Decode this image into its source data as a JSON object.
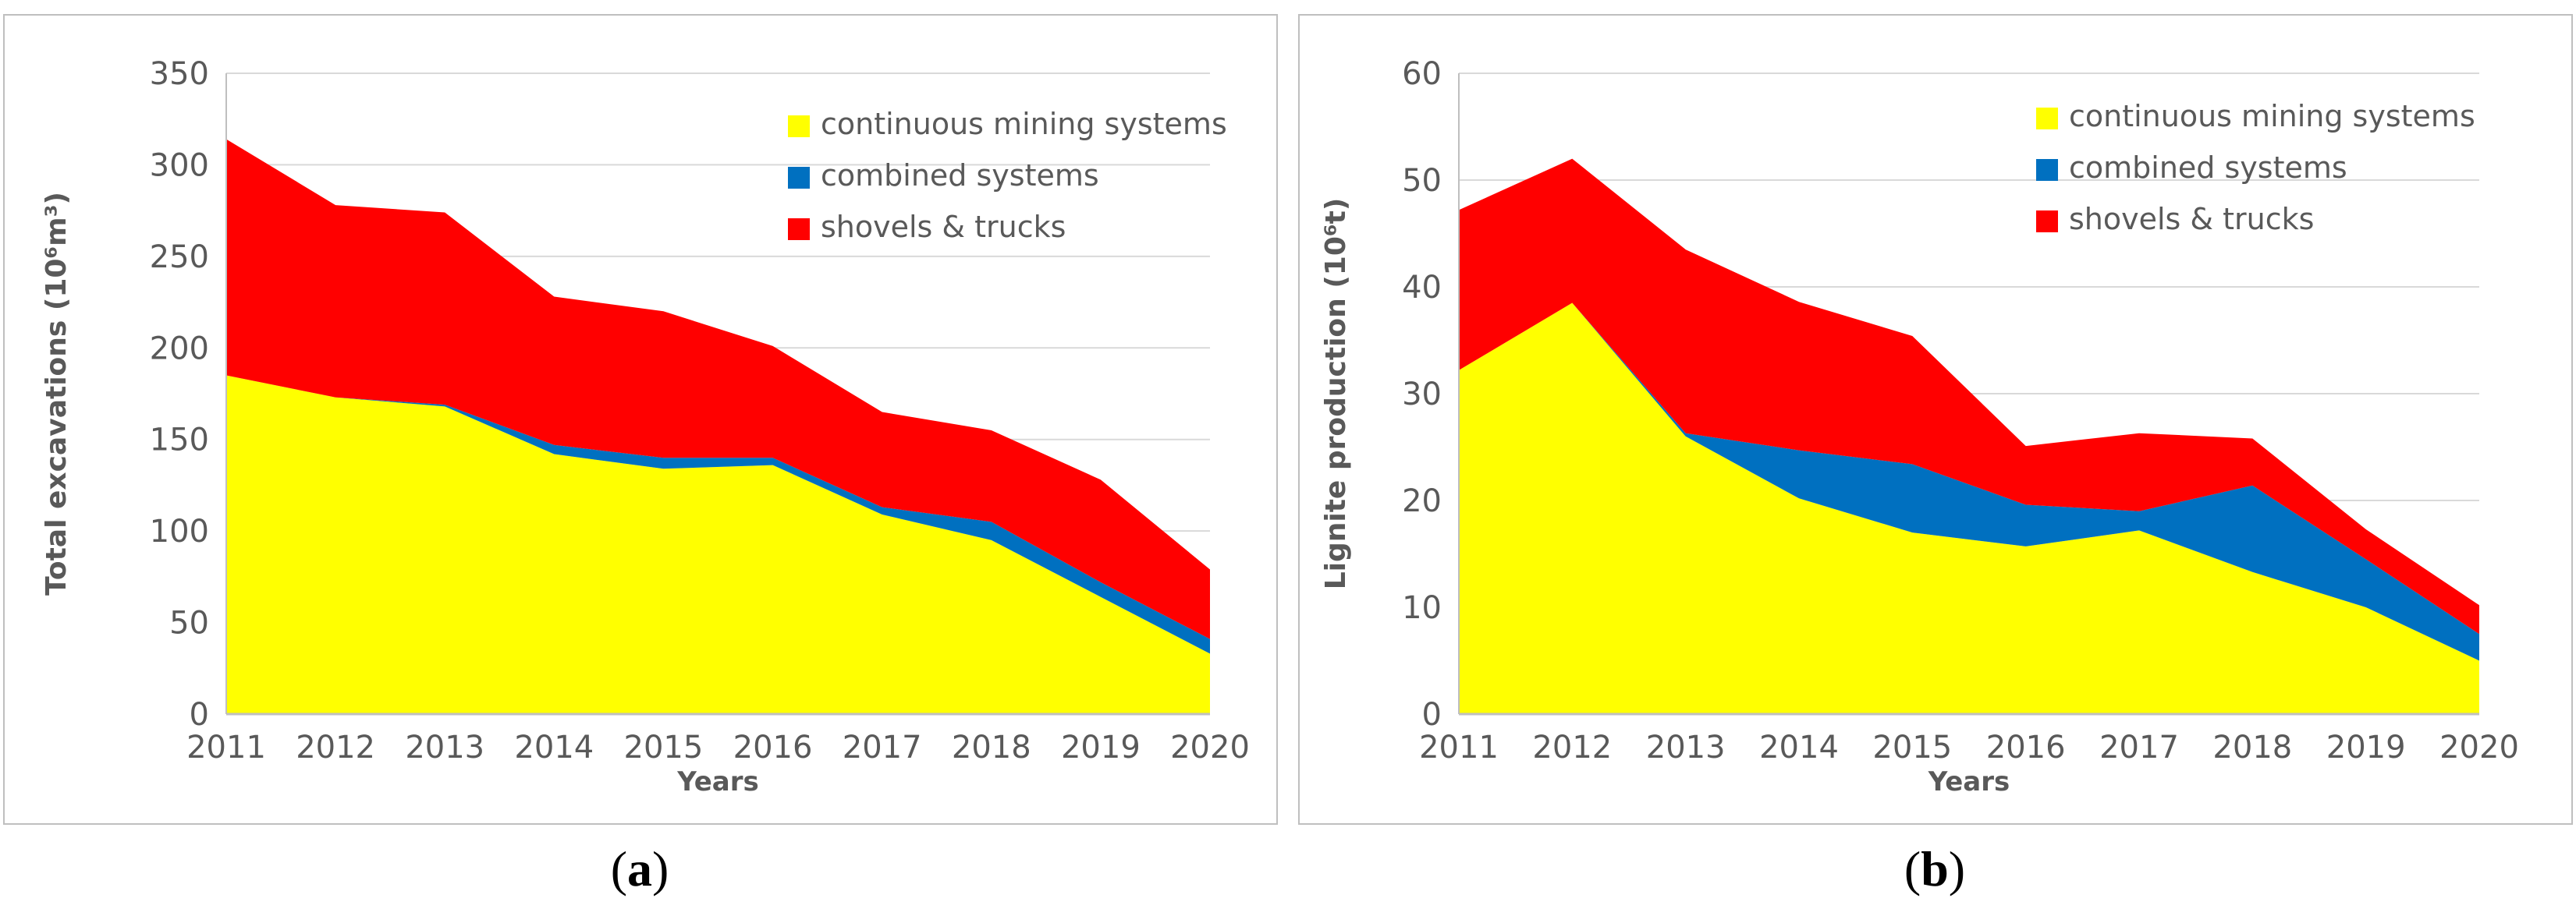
{
  "colors": {
    "continuous": "#FFFF00",
    "combined": "#0070C0",
    "shovels": "#FF0000",
    "grid": "#D9D9D9",
    "axis": "#BFBFBF"
  },
  "chart_data": [
    {
      "type": "area",
      "stacked": true,
      "title": "",
      "xlabel": "Years",
      "ylabel": "Total excavations (10⁶m³)",
      "ylim": [
        0,
        350
      ],
      "yticks": [
        "0",
        "50",
        "100",
        "150",
        "200",
        "250",
        "300",
        "350"
      ],
      "categories": [
        "2011",
        "2012",
        "2013",
        "2014",
        "2015",
        "2016",
        "2017",
        "2018",
        "2019",
        "2020"
      ],
      "legend_position": "top-right",
      "series": [
        {
          "name": "continuous mining systems",
          "color_key": "continuous",
          "values": [
            185,
            173,
            168,
            142,
            134,
            136,
            109,
            95,
            64,
            33
          ]
        },
        {
          "name": "combined systems",
          "color_key": "combined",
          "values": [
            0,
            0,
            1,
            5,
            6,
            4,
            4,
            10,
            8,
            8
          ]
        },
        {
          "name": "shovels & trucks",
          "color_key": "shovels",
          "values": [
            129,
            105,
            105,
            81,
            80,
            61,
            52,
            50,
            56,
            38
          ]
        }
      ]
    },
    {
      "type": "area",
      "stacked": true,
      "title": "",
      "xlabel": "Years",
      "ylabel": "Lignite production (10⁶t)",
      "ylim": [
        0,
        60
      ],
      "yticks": [
        "0",
        "10",
        "20",
        "30",
        "40",
        "50",
        "60"
      ],
      "categories": [
        "2011",
        "2012",
        "2013",
        "2014",
        "2015",
        "2016",
        "2017",
        "2018",
        "2019",
        "2020"
      ],
      "legend_position": "top-right",
      "series": [
        {
          "name": "continuous mining systems",
          "color_key": "continuous",
          "values": [
            32.2,
            38.5,
            26.0,
            20.2,
            17.0,
            15.7,
            17.2,
            13.3,
            10.0,
            5.0
          ]
        },
        {
          "name": "combined systems",
          "color_key": "combined",
          "values": [
            0,
            0,
            0.3,
            4.5,
            6.4,
            3.9,
            1.8,
            8.1,
            4.5,
            2.5
          ]
        },
        {
          "name": "shovels & trucks",
          "color_key": "shovels",
          "values": [
            15.0,
            13.5,
            17.2,
            13.9,
            12.0,
            5.5,
            7.3,
            4.4,
            2.8,
            2.7
          ]
        }
      ]
    }
  ],
  "captions": [
    {
      "open": "(",
      "letter": "a",
      "close": ")"
    },
    {
      "open": "(",
      "letter": "b",
      "close": ")"
    }
  ]
}
